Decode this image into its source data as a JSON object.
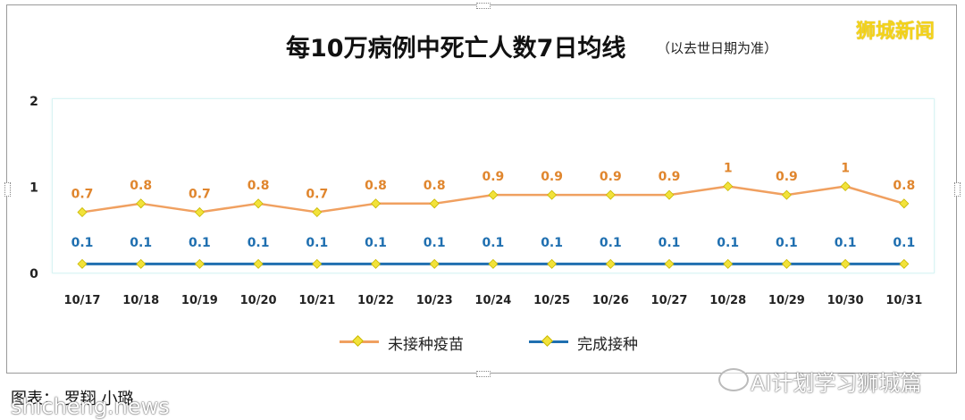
{
  "brand": "狮城新闻",
  "caption": "图表： 罗翔 小璐",
  "watermark_left": "shicheng.news",
  "watermark_right": "AI计划学习狮城篇",
  "colors": {
    "unvaccinated": "#f0a060",
    "vaccinated": "#1f6fb0",
    "marker": "#f2e23a",
    "brand": "#f4d31a"
  },
  "chart_data": {
    "type": "line",
    "title": "每10万病例中死亡人数7日均线",
    "subtitle": "（以去世日期为准）",
    "categories": [
      "10/17",
      "10/18",
      "10/19",
      "10/20",
      "10/21",
      "10/22",
      "10/23",
      "10/24",
      "10/25",
      "10/26",
      "10/27",
      "10/28",
      "10/29",
      "10/30",
      "10/31"
    ],
    "series": [
      {
        "name": "未接种疫苗",
        "values": [
          0.7,
          0.8,
          0.7,
          0.8,
          0.7,
          0.8,
          0.8,
          0.9,
          0.9,
          0.9,
          0.9,
          1,
          0.9,
          1,
          0.8
        ]
      },
      {
        "name": "完成接种",
        "values": [
          0.1,
          0.1,
          0.1,
          0.1,
          0.1,
          0.1,
          0.1,
          0.1,
          0.1,
          0.1,
          0.1,
          0.1,
          0.1,
          0.1,
          0.1
        ]
      }
    ],
    "yticks": [
      "0",
      "1",
      "2"
    ],
    "ylim": [
      0,
      2
    ],
    "grid": false,
    "legend_position": "bottom"
  }
}
